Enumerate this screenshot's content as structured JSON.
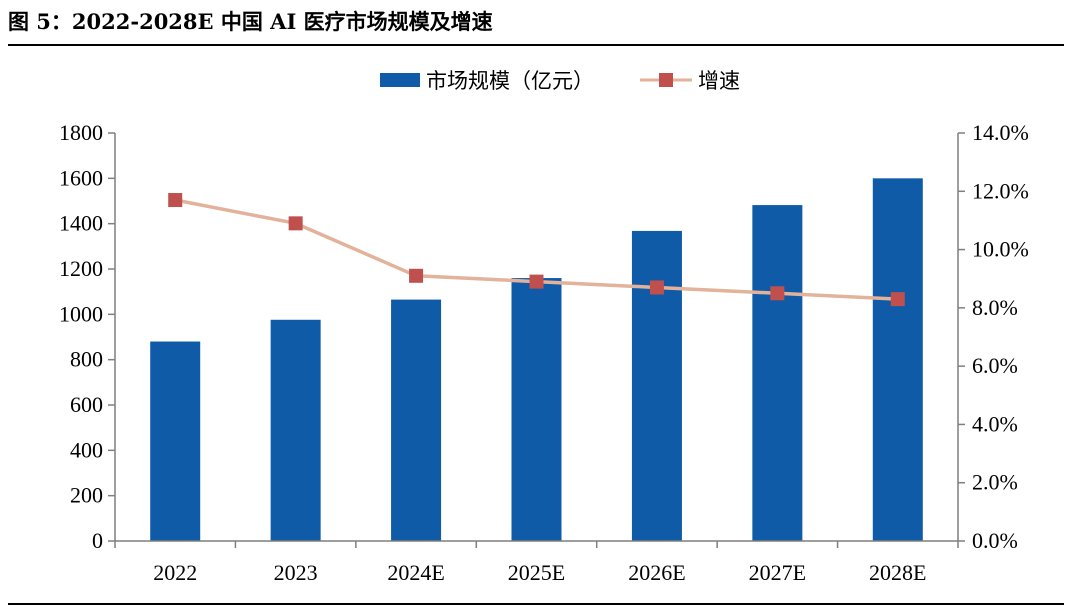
{
  "title": "图 5：2022-2028E 中国 AI 医疗市场规模及增速",
  "chart_data": {
    "type": "bar",
    "categories": [
      "2022",
      "2023",
      "2024E",
      "2025E",
      "2026E",
      "2027E",
      "2028E"
    ],
    "series": [
      {
        "name": "市场规模（亿元）",
        "type": "bar",
        "axis": "left",
        "values": [
          880,
          976,
          1065,
          1160,
          1368,
          1482,
          1600
        ]
      },
      {
        "name": "增速",
        "type": "line",
        "axis": "right",
        "values": [
          11.7,
          10.9,
          9.1,
          8.9,
          8.7,
          8.5,
          8.3
        ]
      }
    ],
    "y_left": {
      "min": 0,
      "max": 1800,
      "ticks": [
        0,
        200,
        400,
        600,
        800,
        1000,
        1200,
        1400,
        1600,
        1800
      ]
    },
    "y_right": {
      "min": 0,
      "max": 14,
      "ticks": [
        "0.0%",
        "2.0%",
        "4.0%",
        "6.0%",
        "8.0%",
        "10.0%",
        "12.0%",
        "14.0%"
      ]
    },
    "legend_position": "top-center",
    "grid": false,
    "colors": {
      "bar": "#0f5ba7",
      "line": "#e2b29a",
      "marker": "#c0504d",
      "axis": "#7f7f7f"
    }
  }
}
